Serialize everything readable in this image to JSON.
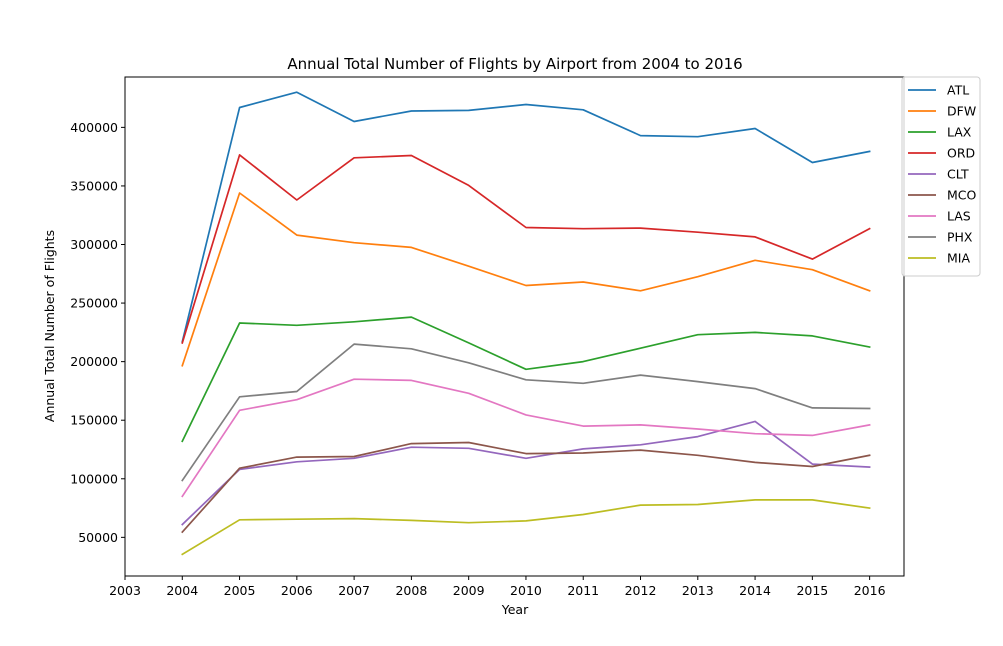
{
  "chart_data": {
    "type": "line",
    "title": "Annual Total Number of Flights by Airport from 2004 to 2016",
    "xlabel": "Year",
    "ylabel": "Annual Total Number of Flights",
    "x": [
      2004,
      2005,
      2006,
      2007,
      2008,
      2009,
      2010,
      2011,
      2012,
      2013,
      2014,
      2015,
      2016
    ],
    "x_ticks": [
      "2003",
      "2004",
      "2005",
      "2006",
      "2007",
      "2008",
      "2009",
      "2010",
      "2011",
      "2012",
      "2013",
      "2014",
      "2015",
      "2016"
    ],
    "y_ticks": [
      "50000",
      "100000",
      "150000",
      "200000",
      "250000",
      "300000",
      "350000",
      "400000"
    ],
    "xlim": [
      2003,
      2016.6
    ],
    "ylim": [
      17000,
      443000
    ],
    "grid": false,
    "legend_position": "top-right outside",
    "series": [
      {
        "name": "ATL",
        "color": "#1f77b4",
        "values": [
          217000,
          417000,
          430000,
          405000,
          414000,
          414500,
          419500,
          415000,
          393000,
          392000,
          399000,
          370000,
          379500
        ]
      },
      {
        "name": "DFW",
        "color": "#ff7f0e",
        "values": [
          196500,
          344000,
          308000,
          301500,
          297500,
          281500,
          265000,
          268000,
          260500,
          272500,
          286500,
          278500,
          260500
        ]
      },
      {
        "name": "LAX",
        "color": "#2ca02c",
        "values": [
          132000,
          233000,
          231000,
          234000,
          238000,
          216000,
          193500,
          200000,
          211500,
          223000,
          225000,
          222000,
          212500
        ]
      },
      {
        "name": "ORD",
        "color": "#d62728",
        "values": [
          216000,
          376500,
          338000,
          374000,
          376000,
          350500,
          314500,
          313500,
          314000,
          310500,
          306500,
          287500,
          313500
        ]
      },
      {
        "name": "CLT",
        "color": "#9467bd",
        "values": [
          61000,
          108000,
          114500,
          117500,
          127000,
          126000,
          117500,
          125500,
          129000,
          136000,
          149000,
          112500,
          110000
        ]
      },
      {
        "name": "MCO",
        "color": "#8c564b",
        "values": [
          54500,
          109000,
          118500,
          119000,
          130000,
          131000,
          121500,
          122000,
          124500,
          120000,
          114000,
          110500,
          120000
        ]
      },
      {
        "name": "LAS",
        "color": "#e377c2",
        "values": [
          85000,
          158500,
          167500,
          185000,
          184000,
          173000,
          154500,
          145000,
          146000,
          142500,
          138500,
          137000,
          146000
        ]
      },
      {
        "name": "PHX",
        "color": "#7f7f7f",
        "values": [
          98500,
          170000,
          174500,
          215000,
          211000,
          199000,
          184500,
          181500,
          188500,
          183000,
          177000,
          160500,
          160000
        ]
      },
      {
        "name": "MIA",
        "color": "#bcbd22",
        "values": [
          35500,
          65000,
          65500,
          66000,
          64500,
          62500,
          64000,
          69500,
          77500,
          78000,
          82000,
          82000,
          75000
        ]
      }
    ]
  }
}
